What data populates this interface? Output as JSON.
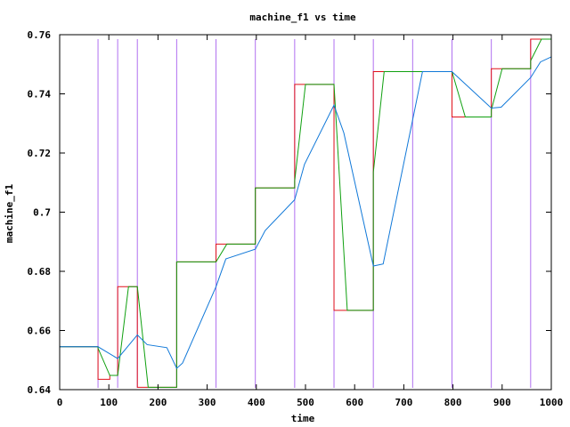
{
  "chart_data": {
    "type": "line",
    "title": "machine_f1 vs time",
    "xlabel": "time",
    "ylabel": "machine_f1",
    "xlim": [
      0,
      1000
    ],
    "ylim": [
      0.64,
      0.76
    ],
    "x_ticks": [
      0,
      100,
      200,
      300,
      400,
      500,
      600,
      700,
      800,
      900,
      1000
    ],
    "y_ticks": [
      0.64,
      0.66,
      0.68,
      0.7,
      0.72,
      0.74,
      0.76
    ],
    "x_tick_labels": [
      "0",
      "100",
      "200",
      "300",
      "400",
      "500",
      "600",
      "700",
      "800",
      "900",
      "1000"
    ],
    "y_tick_labels": [
      "0.64",
      "0.66",
      "0.68",
      "0.7",
      "0.72",
      "0.74",
      "0.76"
    ],
    "grid": false,
    "legend": "none",
    "vertical_markers": {
      "color": "#b070f0",
      "x": [
        78,
        118,
        158,
        238,
        318,
        398,
        478,
        558,
        638,
        718,
        798,
        878,
        958
      ]
    },
    "series": [
      {
        "color": "#e0101a",
        "values": [
          [
            0,
            0.6545
          ],
          [
            78,
            0.6545
          ],
          [
            78,
            0.6435
          ],
          [
            102,
            0.6435
          ],
          [
            102,
            0.6448
          ],
          [
            118,
            0.6448
          ],
          [
            118,
            0.6748
          ],
          [
            158,
            0.6748
          ],
          [
            158,
            0.6408
          ],
          [
            238,
            0.6408
          ],
          [
            238,
            0.6832
          ],
          [
            318,
            0.6832
          ],
          [
            318,
            0.6892
          ],
          [
            398,
            0.6892
          ],
          [
            398,
            0.7082
          ],
          [
            478,
            0.7082
          ],
          [
            478,
            0.7432
          ],
          [
            558,
            0.7432
          ],
          [
            558,
            0.6668
          ],
          [
            638,
            0.6668
          ],
          [
            638,
            0.7475
          ],
          [
            798,
            0.7475
          ],
          [
            798,
            0.7322
          ],
          [
            878,
            0.7322
          ],
          [
            878,
            0.7485
          ],
          [
            958,
            0.7485
          ],
          [
            958,
            0.7585
          ],
          [
            1000,
            0.7585
          ]
        ]
      },
      {
        "color": "#10a010",
        "values": [
          [
            0,
            0.6545
          ],
          [
            78,
            0.6545
          ],
          [
            78,
            0.654
          ],
          [
            102,
            0.6448
          ],
          [
            118,
            0.6448
          ],
          [
            140,
            0.6748
          ],
          [
            158,
            0.6748
          ],
          [
            180,
            0.6408
          ],
          [
            238,
            0.6408
          ],
          [
            238,
            0.6832
          ],
          [
            318,
            0.6832
          ],
          [
            340,
            0.6892
          ],
          [
            398,
            0.6892
          ],
          [
            398,
            0.7082
          ],
          [
            478,
            0.7082
          ],
          [
            478,
            0.7105
          ],
          [
            500,
            0.7432
          ],
          [
            558,
            0.7432
          ],
          [
            585,
            0.6668
          ],
          [
            638,
            0.6668
          ],
          [
            638,
            0.7135
          ],
          [
            660,
            0.7475
          ],
          [
            798,
            0.7475
          ],
          [
            825,
            0.7322
          ],
          [
            878,
            0.7322
          ],
          [
            878,
            0.7345
          ],
          [
            900,
            0.7485
          ],
          [
            958,
            0.7485
          ],
          [
            958,
            0.7512
          ],
          [
            980,
            0.7585
          ],
          [
            1000,
            0.7585
          ]
        ]
      },
      {
        "color": "#1078d8",
        "values": [
          [
            0,
            0.6545
          ],
          [
            78,
            0.6545
          ],
          [
            118,
            0.6505
          ],
          [
            158,
            0.6585
          ],
          [
            178,
            0.6552
          ],
          [
            218,
            0.6542
          ],
          [
            238,
            0.6472
          ],
          [
            250,
            0.649
          ],
          [
            318,
            0.6748
          ],
          [
            338,
            0.6842
          ],
          [
            398,
            0.6875
          ],
          [
            418,
            0.6938
          ],
          [
            478,
            0.7042
          ],
          [
            498,
            0.7162
          ],
          [
            558,
            0.7362
          ],
          [
            578,
            0.7268
          ],
          [
            638,
            0.6818
          ],
          [
            658,
            0.6825
          ],
          [
            738,
            0.7475
          ],
          [
            798,
            0.7475
          ],
          [
            878,
            0.7352
          ],
          [
            898,
            0.7355
          ],
          [
            958,
            0.7455
          ],
          [
            978,
            0.7508
          ],
          [
            1000,
            0.7525
          ]
        ]
      }
    ]
  }
}
